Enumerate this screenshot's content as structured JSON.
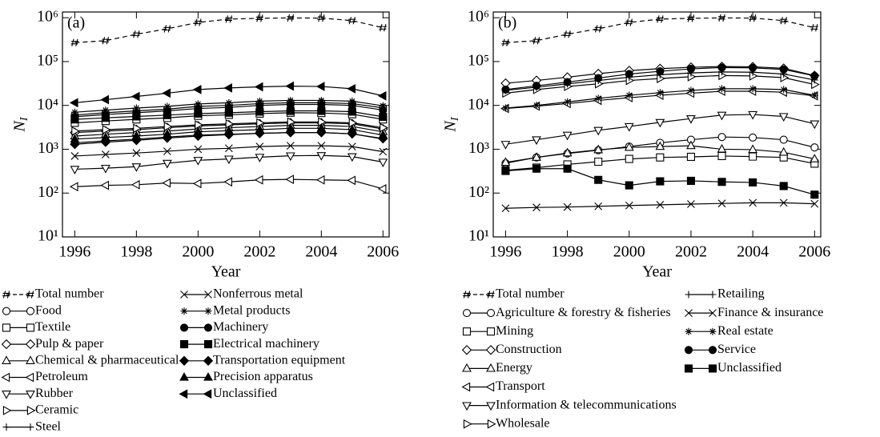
{
  "chart_data": [
    {
      "type": "line",
      "panel_label": "(a)",
      "x_label": "Year",
      "y_label": "NI",
      "log_y": true,
      "x": [
        1996,
        1997,
        1998,
        1999,
        2000,
        2001,
        2002,
        2003,
        2004,
        2005,
        2006
      ],
      "xlim": [
        1995.6,
        2006.2
      ],
      "ylim": [
        10,
        1350000
      ],
      "xticks": [
        1996,
        1998,
        2000,
        2002,
        2004,
        2006
      ],
      "yticks": [
        {
          "value": 10,
          "label": "10¹"
        },
        {
          "value": 100,
          "label": "10²"
        },
        {
          "value": 1000,
          "label": "10³"
        },
        {
          "value": 10000,
          "label": "10⁴"
        },
        {
          "value": 100000,
          "label": "10⁵"
        },
        {
          "value": 1000000,
          "label": "10⁶"
        }
      ],
      "series": [
        {
          "name": "Total number",
          "color": "#000",
          "marker": "hash",
          "dashed": true,
          "values": [
            270000,
            300000,
            420000,
            560000,
            780000,
            930000,
            970000,
            990000,
            980000,
            860000,
            590000
          ]
        },
        {
          "name": "Food",
          "color": "#000",
          "marker": "circle-open",
          "values": [
            6000,
            6800,
            7500,
            8200,
            9500,
            10000,
            11000,
            11500,
            11500,
            11000,
            8800
          ]
        },
        {
          "name": "Textile",
          "color": "#000",
          "marker": "square-open",
          "values": [
            4000,
            4400,
            4800,
            5200,
            5800,
            6100,
            6500,
            6800,
            6700,
            6300,
            4800
          ]
        },
        {
          "name": "Pulp & paper",
          "color": "#000",
          "marker": "diamond-open",
          "values": [
            2400,
            2600,
            2800,
            3100,
            3400,
            3600,
            3800,
            4000,
            4000,
            3800,
            2900
          ]
        },
        {
          "name": "Chemical & pharmaceutical",
          "color": "#000",
          "marker": "up-open",
          "values": [
            2000,
            2200,
            2400,
            2600,
            2900,
            3100,
            3300,
            3500,
            3500,
            3300,
            2500
          ]
        },
        {
          "name": "Petroleum",
          "color": "#000",
          "marker": "left-open",
          "values": [
            140,
            150,
            155,
            170,
            165,
            180,
            200,
            205,
            200,
            195,
            125
          ]
        },
        {
          "name": "Rubber",
          "color": "#000",
          "marker": "down-open",
          "values": [
            350,
            370,
            400,
            480,
            560,
            600,
            660,
            710,
            720,
            680,
            510
          ]
        },
        {
          "name": "Ceramic",
          "color": "#000",
          "marker": "right-open",
          "values": [
            2600,
            2800,
            3000,
            3300,
            3600,
            3800,
            4000,
            4200,
            4200,
            4000,
            3100
          ]
        },
        {
          "name": "Steel",
          "color": "#000",
          "marker": "plus",
          "values": [
            1400,
            1550,
            1700,
            1900,
            2100,
            2200,
            2300,
            2400,
            2400,
            2250,
            1700
          ]
        },
        {
          "name": "Nonferrous metal",
          "color": "#000",
          "marker": "cross",
          "values": [
            700,
            760,
            820,
            900,
            1000,
            1050,
            1150,
            1200,
            1200,
            1150,
            880
          ]
        },
        {
          "name": "Metal products",
          "color": "#000",
          "marker": "star",
          "values": [
            7000,
            7800,
            8700,
            9500,
            10800,
            11500,
            12500,
            13000,
            13000,
            12500,
            9800
          ]
        },
        {
          "name": "Machinery",
          "color": "#000",
          "marker": "circle-filled",
          "values": [
            5500,
            6200,
            6800,
            7500,
            8500,
            9000,
            10000,
            10500,
            10500,
            10000,
            7800
          ]
        },
        {
          "name": "Electrical machinery",
          "color": "#000",
          "marker": "square-filled",
          "values": [
            4800,
            5200,
            5600,
            6000,
            6500,
            6800,
            7200,
            7500,
            7500,
            7200,
            5500
          ]
        },
        {
          "name": "Transportation equipment",
          "color": "#000",
          "marker": "diamond-filled",
          "values": [
            1300,
            1450,
            1600,
            1800,
            2000,
            2150,
            2300,
            2400,
            2400,
            2250,
            1750
          ]
        },
        {
          "name": "Precision apparatus",
          "color": "#000",
          "marker": "up-filled",
          "values": [
            1700,
            1850,
            2000,
            2200,
            2500,
            2650,
            2800,
            3000,
            3000,
            2800,
            2100
          ]
        },
        {
          "name": "Unclassified",
          "color": "#000",
          "marker": "left-filled",
          "values": [
            11500,
            13500,
            16000,
            19000,
            23000,
            25000,
            26500,
            27500,
            27000,
            24000,
            16500
          ]
        }
      ]
    },
    {
      "type": "line",
      "panel_label": "(b)",
      "x_label": "Year",
      "y_label": "NI",
      "log_y": true,
      "x": [
        1996,
        1997,
        1998,
        1999,
        2000,
        2001,
        2002,
        2003,
        2004,
        2005,
        2006
      ],
      "xlim": [
        1995.6,
        2006.2
      ],
      "ylim": [
        10,
        1350000
      ],
      "xticks": [
        1996,
        1998,
        2000,
        2002,
        2004,
        2006
      ],
      "yticks": [
        {
          "value": 10,
          "label": "10¹"
        },
        {
          "value": 100,
          "label": "10²"
        },
        {
          "value": 1000,
          "label": "10³"
        },
        {
          "value": 10000,
          "label": "10⁴"
        },
        {
          "value": 100000,
          "label": "10⁵"
        },
        {
          "value": 1000000,
          "label": "10⁶"
        }
      ],
      "series": [
        {
          "name": "Total number",
          "color": "#000",
          "marker": "hash",
          "dashed": true,
          "values": [
            270000,
            300000,
            420000,
            560000,
            780000,
            930000,
            970000,
            990000,
            980000,
            860000,
            590000
          ]
        },
        {
          "name": "Agriculture & forestry & fisheries",
          "color": "#000",
          "marker": "circle-open",
          "values": [
            480,
            650,
            800,
            950,
            1150,
            1400,
            1650,
            1900,
            1850,
            1650,
            1100
          ]
        },
        {
          "name": "Mining",
          "color": "#000",
          "marker": "square-open",
          "values": [
            330,
            380,
            450,
            520,
            600,
            650,
            670,
            700,
            680,
            650,
            470
          ]
        },
        {
          "name": "Construction",
          "color": "#000",
          "marker": "diamond-open",
          "values": [
            32000,
            37000,
            44000,
            53000,
            62000,
            69000,
            74000,
            77000,
            76000,
            70000,
            48000
          ]
        },
        {
          "name": "Energy",
          "color": "#000",
          "marker": "up-open",
          "values": [
            500,
            650,
            820,
            970,
            1100,
            1150,
            1200,
            1000,
            980,
            850,
            600
          ]
        },
        {
          "name": "Transport",
          "color": "#000",
          "marker": "left-open",
          "values": [
            8500,
            9600,
            11000,
            13000,
            15000,
            17000,
            19000,
            21000,
            21000,
            20000,
            16500
          ]
        },
        {
          "name": "Information & telecommunications",
          "color": "#000",
          "marker": "down-open",
          "values": [
            1300,
            1650,
            2100,
            2700,
            3300,
            4100,
            5000,
            6000,
            6200,
            5600,
            3800
          ]
        },
        {
          "name": "Wholesale",
          "color": "#000",
          "marker": "right-open",
          "values": [
            19000,
            23000,
            27000,
            31000,
            37000,
            41000,
            45000,
            48000,
            47000,
            43000,
            30000
          ]
        },
        {
          "name": "Retailing",
          "color": "#000",
          "marker": "plus",
          "values": [
            22000,
            26000,
            31000,
            37000,
            44000,
            50000,
            55000,
            58000,
            57000,
            52000,
            38000
          ]
        },
        {
          "name": "Finance & insurance",
          "color": "#000",
          "marker": "cross",
          "values": [
            45,
            47,
            48,
            50,
            52,
            54,
            56,
            58,
            60,
            60,
            57
          ]
        },
        {
          "name": "Real estate",
          "color": "#000",
          "marker": "star",
          "values": [
            8700,
            10000,
            12000,
            14500,
            17000,
            19500,
            22000,
            24000,
            24000,
            23000,
            17000
          ]
        },
        {
          "name": "Service",
          "color": "#000",
          "marker": "circle-filled",
          "values": [
            23000,
            28000,
            34000,
            42000,
            52000,
            60000,
            68000,
            73000,
            72000,
            66000,
            47000
          ]
        },
        {
          "name": "Unclassified",
          "color": "#000",
          "marker": "square-filled",
          "values": [
            320,
            360,
            360,
            200,
            150,
            185,
            190,
            180,
            175,
            145,
            92
          ]
        }
      ]
    }
  ]
}
